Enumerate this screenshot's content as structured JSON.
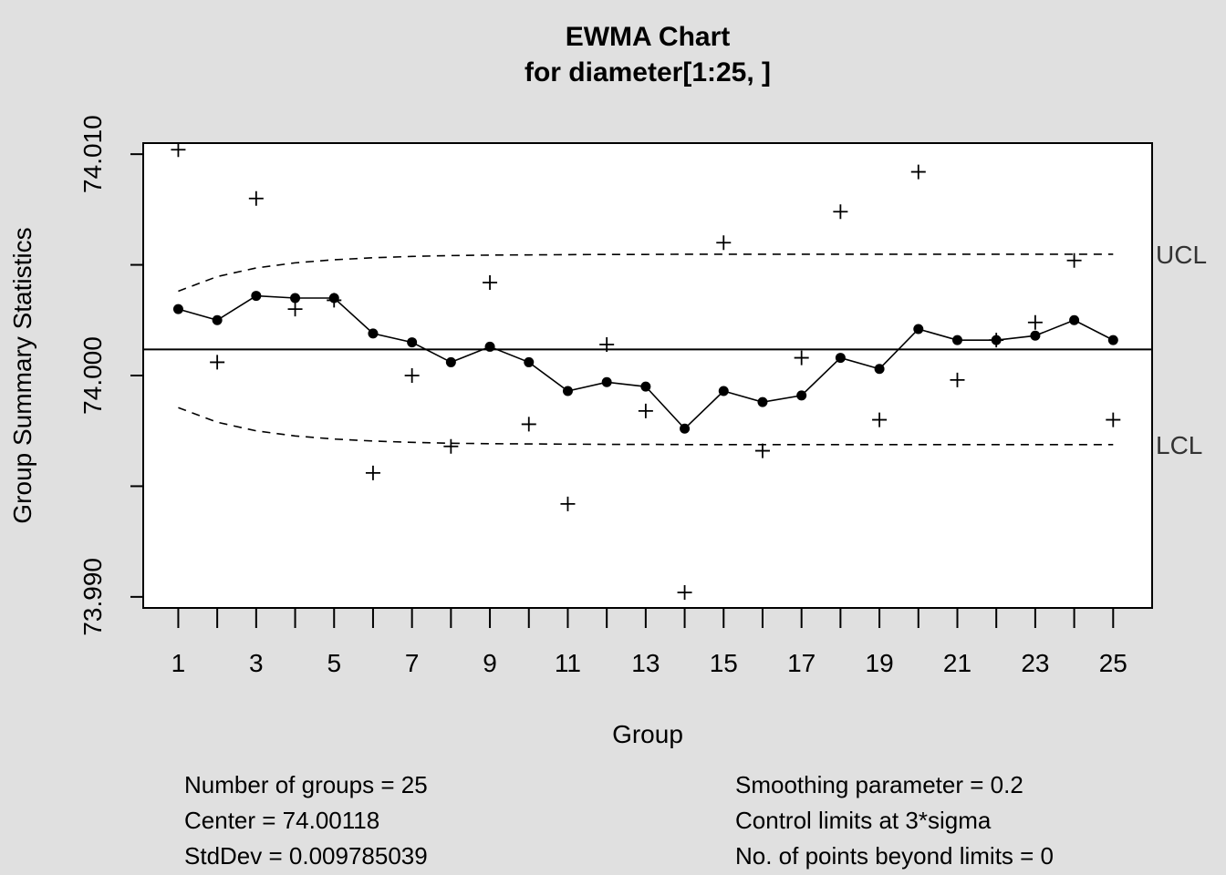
{
  "chart_data": {
    "type": "line",
    "title": "EWMA Chart",
    "subtitle": "for diameter[1:25, ]",
    "xlabel": "Group",
    "ylabel": "Group Summary Statistics",
    "xlim": [
      0.1,
      26
    ],
    "ylim": [
      73.9895,
      74.0105
    ],
    "y_ticks": [
      73.99,
      73.995,
      74.0,
      74.005,
      74.01
    ],
    "y_tick_labels": [
      "73.990",
      "",
      "74.000",
      "",
      "74.010"
    ],
    "x_ticks": [
      1,
      2,
      3,
      4,
      5,
      6,
      7,
      8,
      9,
      10,
      11,
      12,
      13,
      14,
      15,
      16,
      17,
      18,
      19,
      20,
      21,
      22,
      23,
      24,
      25
    ],
    "x_tick_labels": [
      "1",
      "",
      "3",
      "",
      "5",
      "",
      "7",
      "",
      "9",
      "",
      "11",
      "",
      "13",
      "",
      "15",
      "",
      "17",
      "",
      "19",
      "",
      "21",
      "",
      "23",
      "",
      "25"
    ],
    "center": 74.00118,
    "groups": [
      1,
      2,
      3,
      4,
      5,
      6,
      7,
      8,
      9,
      10,
      11,
      12,
      13,
      14,
      15,
      16,
      17,
      18,
      19,
      20,
      21,
      22,
      23,
      24,
      25
    ],
    "group_stats": [
      74.0102,
      74.0006,
      74.008,
      74.003,
      74.0034,
      73.9956,
      74.0,
      73.9968,
      74.0042,
      73.9978,
      73.9942,
      74.0014,
      73.9984,
      73.9902,
      74.006,
      73.9966,
      74.0008,
      74.0074,
      73.998,
      74.0092,
      73.9998,
      74.0016,
      74.0024,
      74.0052,
      73.998
    ],
    "ewma": [
      74.003,
      74.0025,
      74.0036,
      74.0035,
      74.0035,
      74.0019,
      74.0015,
      74.0006,
      74.0013,
      74.0006,
      73.9993,
      73.9997,
      73.9995,
      73.9976,
      73.9993,
      73.9988,
      73.9991,
      74.0008,
      74.0003,
      74.0021,
      74.0016,
      74.0016,
      74.0018,
      74.0025,
      74.0016
    ],
    "ucl": [
      74.00381,
      74.00447,
      74.00486,
      74.00509,
      74.00523,
      74.00532,
      74.00538,
      74.00542,
      74.00544,
      74.00545,
      74.00546,
      74.00547,
      74.00547,
      74.00548,
      74.00548,
      74.00548,
      74.00548,
      74.00548,
      74.00548,
      74.00548,
      74.00548,
      74.00548,
      74.00548,
      74.00548,
      74.00548
    ],
    "lcl": [
      73.99855,
      73.99789,
      73.9975,
      73.99727,
      73.99713,
      73.99704,
      73.99698,
      73.99694,
      73.99692,
      73.99691,
      73.9969,
      73.99689,
      73.99689,
      73.99688,
      73.99688,
      73.99688,
      73.99688,
      73.99688,
      73.99688,
      73.99688,
      73.99688,
      73.99688,
      73.99688,
      73.99688,
      73.99688
    ],
    "ucl_label": "UCL",
    "lcl_label": "LCL"
  },
  "stats_left": {
    "line1": "Number of groups = 25",
    "line2": "Center = 74.00118",
    "line3": "StdDev = 0.009785039"
  },
  "stats_right": {
    "line1": "Smoothing parameter =  0.2",
    "line2": "Control limits at 3*sigma",
    "line3": "No. of points beyond limits = 0"
  }
}
